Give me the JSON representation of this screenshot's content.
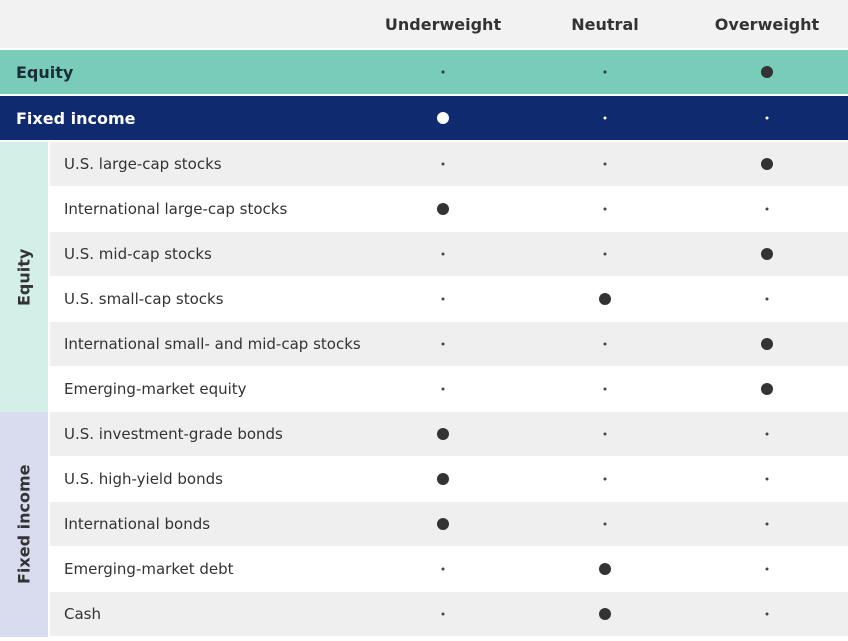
{
  "header": {
    "columns": [
      "Underweight",
      "Neutral",
      "Overweight"
    ]
  },
  "summary": [
    {
      "label": "Equity",
      "position": 2
    },
    {
      "label": "Fixed income",
      "position": 0
    }
  ],
  "groups": [
    {
      "label": "Equity",
      "rows": [
        {
          "label": "U.S. large-cap stocks",
          "position": 2
        },
        {
          "label": "International large-cap stocks",
          "position": 0
        },
        {
          "label": "U.S. mid-cap stocks",
          "position": 2
        },
        {
          "label": "U.S. small-cap stocks",
          "position": 1
        },
        {
          "label": "International small- and mid-cap stocks",
          "position": 2
        },
        {
          "label": "Emerging-market equity",
          "position": 2
        }
      ]
    },
    {
      "label": "Fixed income",
      "rows": [
        {
          "label": "U.S. investment-grade bonds",
          "position": 0
        },
        {
          "label": "U.S. high-yield bonds",
          "position": 0
        },
        {
          "label": "International bonds",
          "position": 0
        },
        {
          "label": "Emerging-market debt",
          "position": 1
        },
        {
          "label": "Cash",
          "position": 1
        }
      ]
    }
  ]
}
